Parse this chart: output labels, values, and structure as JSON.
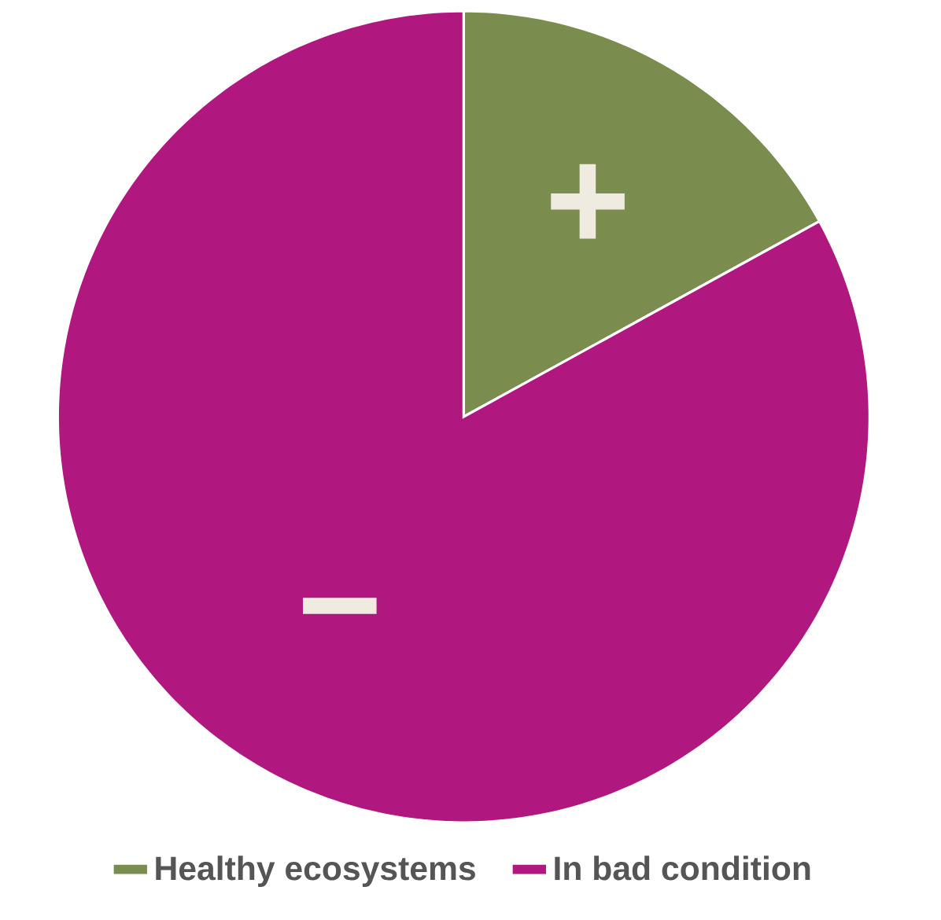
{
  "chart_data": {
    "type": "pie",
    "categories": [
      "Healthy ecosystems",
      "In bad condition"
    ],
    "values": [
      17,
      83
    ],
    "colors": [
      "#7a8c4e",
      "#b0177f"
    ],
    "value_labels": [
      "+",
      "−"
    ],
    "legend": "bottom"
  }
}
